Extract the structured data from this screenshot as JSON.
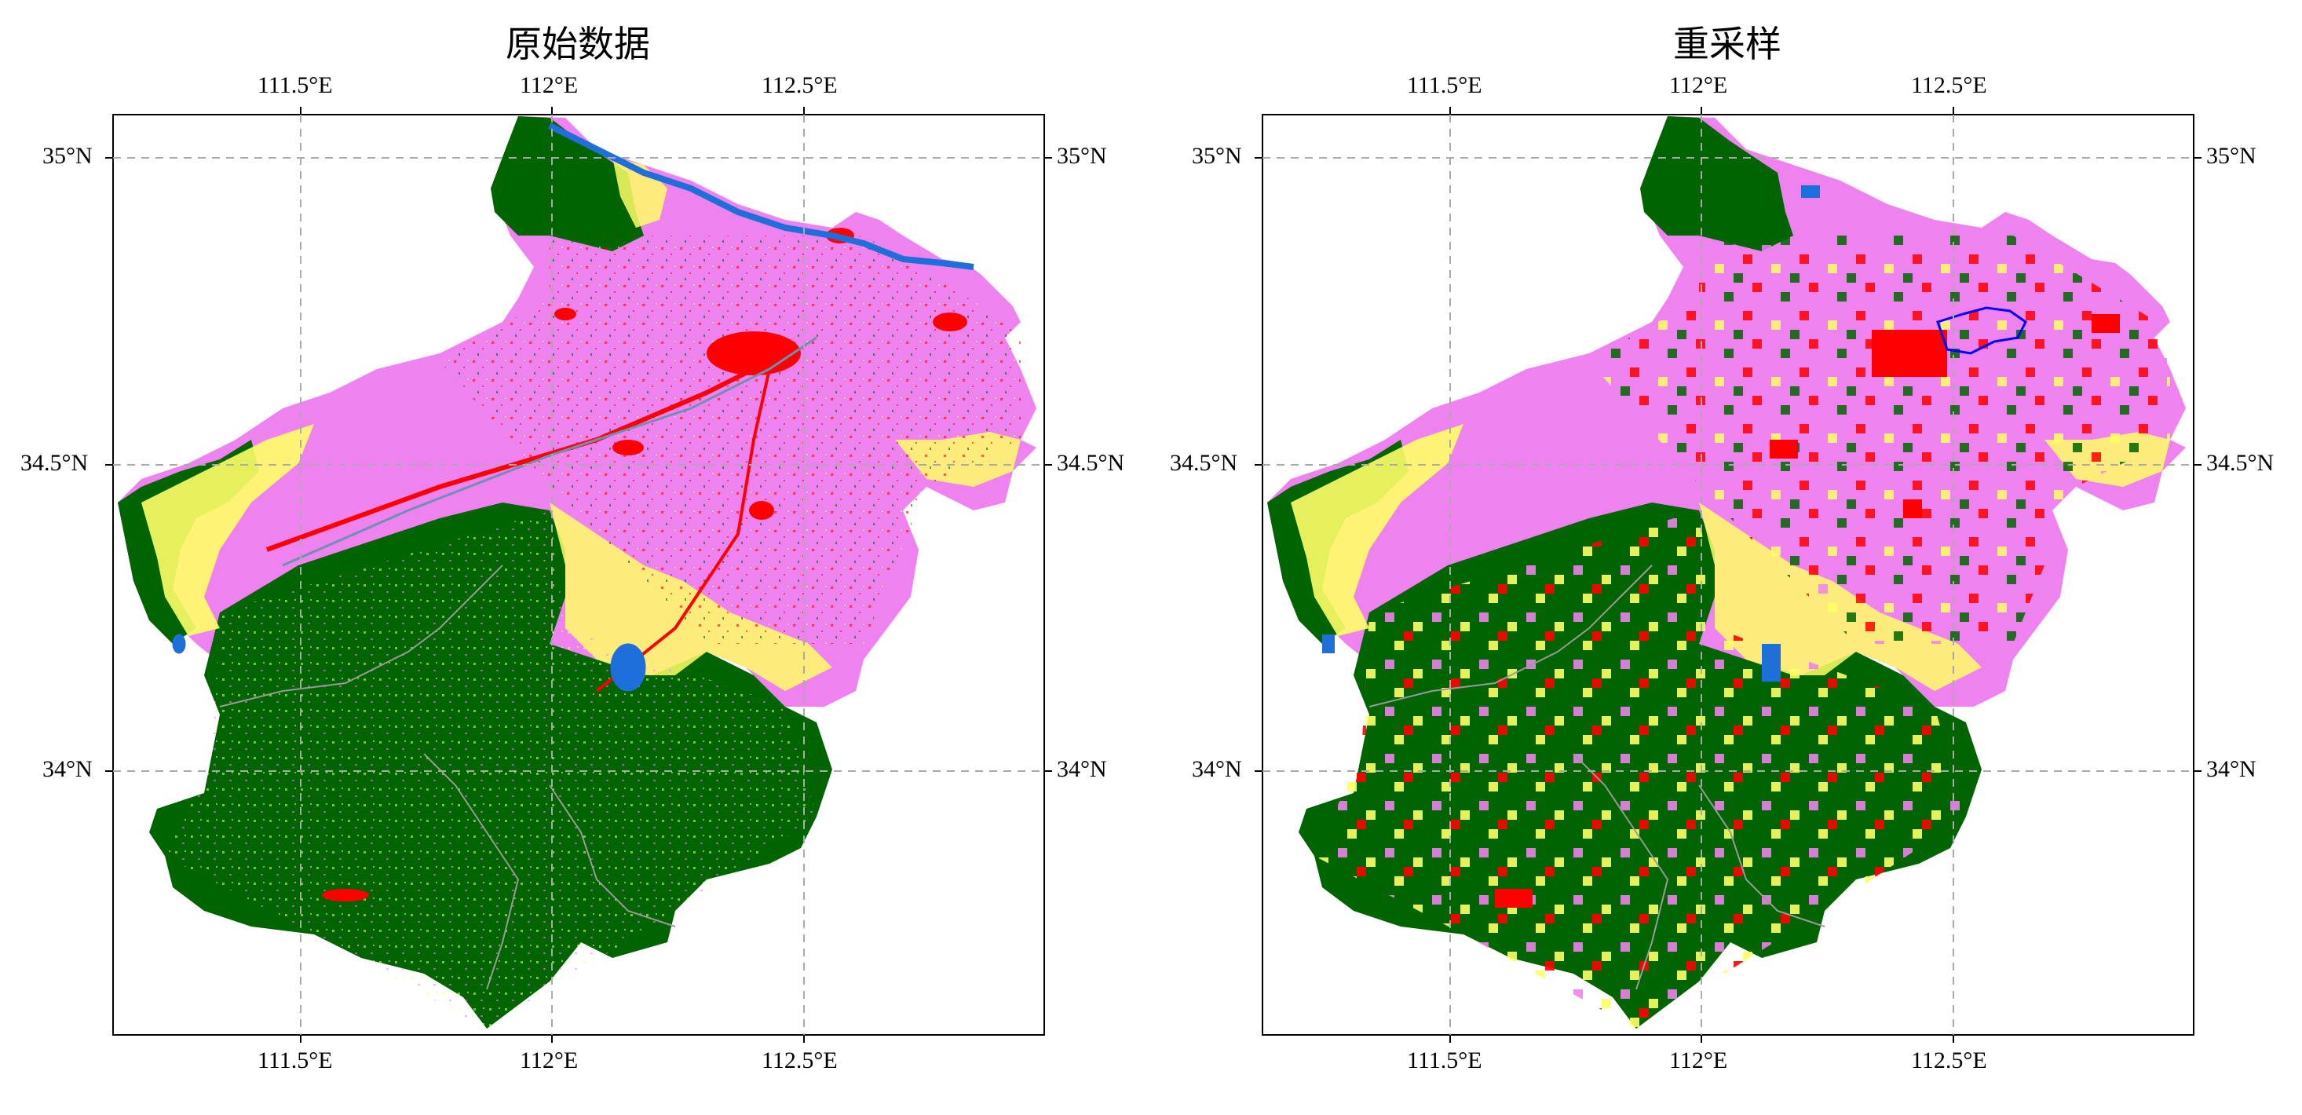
{
  "panels": [
    {
      "title": "原始数据",
      "x_ticks": [
        {
          "lon": 111.5,
          "label": "111.5°E"
        },
        {
          "lon": 112.0,
          "label": "112°E"
        },
        {
          "lon": 112.5,
          "label": "112.5°E"
        }
      ],
      "y_ticks": [
        {
          "lat": 35.0,
          "label": "35°N"
        },
        {
          "lat": 34.5,
          "label": "34.5°N"
        },
        {
          "lat": 34.0,
          "label": "34°N"
        }
      ]
    },
    {
      "title": "重采样",
      "x_ticks": [
        {
          "lon": 111.5,
          "label": "111.5°E"
        },
        {
          "lon": 112.0,
          "label": "112°E"
        },
        {
          "lon": 112.5,
          "label": "112.5°E"
        }
      ],
      "y_ticks": [
        {
          "lat": 35.0,
          "label": "35°N"
        },
        {
          "lat": 34.5,
          "label": "34.5°N"
        },
        {
          "lat": 34.0,
          "label": "34°N"
        }
      ]
    }
  ],
  "map_extent": {
    "lon_min": 111.125,
    "lon_max": 112.98,
    "lat_min": 33.55,
    "lat_max": 35.07
  },
  "colors": {
    "forest": "#006400",
    "grassland": "#ffff66",
    "cropland": "#ee82ee",
    "builtup": "#ff0000",
    "water": "#1e6fd9",
    "grid": "#aaaaaa"
  }
}
